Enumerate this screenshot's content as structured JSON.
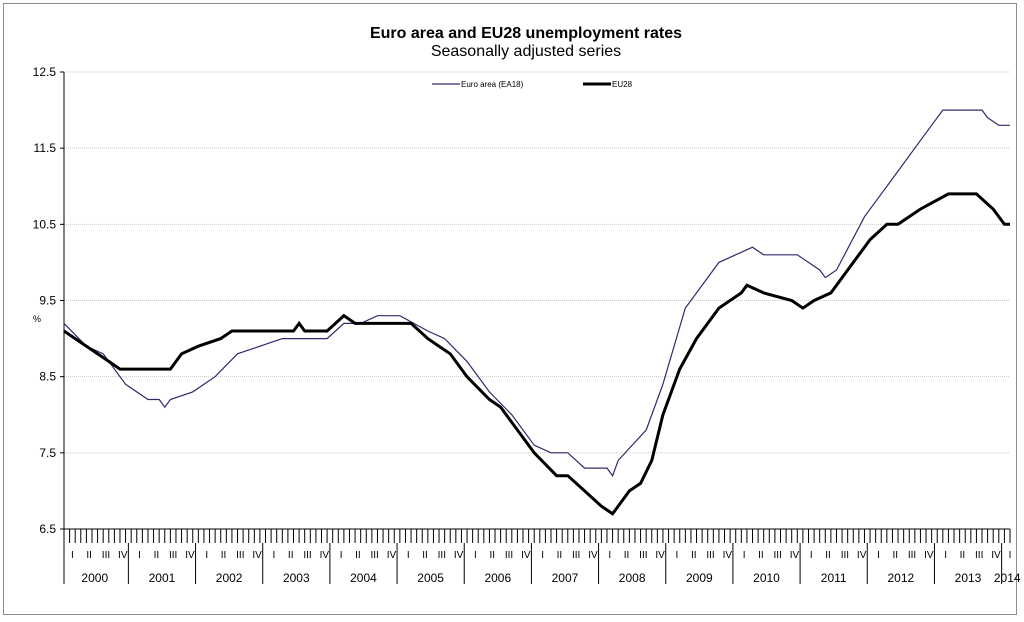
{
  "chart_data": {
    "type": "line",
    "title": "Euro area and EU28 unemployment rates",
    "subtitle": "Seasonally adjusted series",
    "ylabel": "%",
    "ylim": [
      6.5,
      12.5
    ],
    "yticks": [
      6.5,
      7.5,
      8.5,
      9.5,
      10.5,
      11.5,
      12.5
    ],
    "grid": true,
    "legend_position": "top",
    "x_start": "2000-01",
    "x_end": "2014-02",
    "quarter_labels": [
      "I",
      "II",
      "III",
      "IV"
    ],
    "years": [
      "2000",
      "2001",
      "2002",
      "2003",
      "2004",
      "2005",
      "2006",
      "2007",
      "2008",
      "2009",
      "2010",
      "2011",
      "2012",
      "2013",
      "2014"
    ],
    "series": [
      {
        "name": "Euro area (EA18)",
        "color": "#2b2b6e",
        "width": 1.2,
        "points": [
          [
            "2000-01",
            9.2
          ],
          [
            "2000-05",
            8.9
          ],
          [
            "2000-08",
            8.8
          ],
          [
            "2000-12",
            8.4
          ],
          [
            "2001-04",
            8.2
          ],
          [
            "2001-06",
            8.2
          ],
          [
            "2001-07",
            8.1
          ],
          [
            "2001-08",
            8.2
          ],
          [
            "2001-12",
            8.3
          ],
          [
            "2002-04",
            8.5
          ],
          [
            "2002-08",
            8.8
          ],
          [
            "2002-12",
            8.9
          ],
          [
            "2003-04",
            9.0
          ],
          [
            "2003-12",
            9.0
          ],
          [
            "2004-03",
            9.2
          ],
          [
            "2004-06",
            9.2
          ],
          [
            "2004-09",
            9.3
          ],
          [
            "2005-01",
            9.3
          ],
          [
            "2005-06",
            9.1
          ],
          [
            "2005-09",
            9.0
          ],
          [
            "2006-01",
            8.7
          ],
          [
            "2006-05",
            8.3
          ],
          [
            "2006-09",
            8.0
          ],
          [
            "2007-01",
            7.6
          ],
          [
            "2007-04",
            7.5
          ],
          [
            "2007-07",
            7.5
          ],
          [
            "2007-10",
            7.3
          ],
          [
            "2008-02",
            7.3
          ],
          [
            "2008-03",
            7.2
          ],
          [
            "2008-04",
            7.4
          ],
          [
            "2008-09",
            7.8
          ],
          [
            "2008-12",
            8.4
          ],
          [
            "2009-04",
            9.4
          ],
          [
            "2009-08",
            9.8
          ],
          [
            "2009-10",
            10.0
          ],
          [
            "2010-04",
            10.2
          ],
          [
            "2010-06",
            10.1
          ],
          [
            "2010-12",
            10.1
          ],
          [
            "2011-04",
            9.9
          ],
          [
            "2011-05",
            9.8
          ],
          [
            "2011-07",
            9.9
          ],
          [
            "2011-12",
            10.6
          ],
          [
            "2012-04",
            11.0
          ],
          [
            "2012-09",
            11.5
          ],
          [
            "2012-12",
            11.8
          ],
          [
            "2013-02",
            12.0
          ],
          [
            "2013-09",
            12.0
          ],
          [
            "2013-10",
            11.9
          ],
          [
            "2013-12",
            11.8
          ],
          [
            "2014-02",
            11.8
          ]
        ]
      },
      {
        "name": "EU28",
        "color": "#000000",
        "width": 3,
        "points": [
          [
            "2000-01",
            9.1
          ],
          [
            "2000-03",
            9.0
          ],
          [
            "2000-09",
            8.7
          ],
          [
            "2000-11",
            8.6
          ],
          [
            "2001-08",
            8.6
          ],
          [
            "2001-10",
            8.8
          ],
          [
            "2002-01",
            8.9
          ],
          [
            "2002-05",
            9.0
          ],
          [
            "2002-07",
            9.1
          ],
          [
            "2003-06",
            9.1
          ],
          [
            "2003-07",
            9.2
          ],
          [
            "2003-08",
            9.1
          ],
          [
            "2003-12",
            9.1
          ],
          [
            "2004-03",
            9.3
          ],
          [
            "2004-05",
            9.2
          ],
          [
            "2005-03",
            9.2
          ],
          [
            "2005-06",
            9.0
          ],
          [
            "2005-08",
            8.9
          ],
          [
            "2005-10",
            8.8
          ],
          [
            "2006-01",
            8.5
          ],
          [
            "2006-05",
            8.2
          ],
          [
            "2006-07",
            8.1
          ],
          [
            "2006-09",
            7.9
          ],
          [
            "2006-10",
            7.8
          ],
          [
            "2007-01",
            7.5
          ],
          [
            "2007-05",
            7.2
          ],
          [
            "2007-07",
            7.2
          ],
          [
            "2007-10",
            7.0
          ],
          [
            "2008-01",
            6.8
          ],
          [
            "2008-03",
            6.7
          ],
          [
            "2008-05",
            6.9
          ],
          [
            "2008-06",
            7.0
          ],
          [
            "2008-08",
            7.1
          ],
          [
            "2008-10",
            7.4
          ],
          [
            "2008-12",
            8.0
          ],
          [
            "2009-03",
            8.6
          ],
          [
            "2009-06",
            9.0
          ],
          [
            "2009-08",
            9.2
          ],
          [
            "2009-10",
            9.4
          ],
          [
            "2010-02",
            9.6
          ],
          [
            "2010-03",
            9.7
          ],
          [
            "2010-06",
            9.6
          ],
          [
            "2010-11",
            9.5
          ],
          [
            "2011-01",
            9.4
          ],
          [
            "2011-03",
            9.5
          ],
          [
            "2011-06",
            9.6
          ],
          [
            "2011-10",
            10.0
          ],
          [
            "2012-01",
            10.3
          ],
          [
            "2012-04",
            10.5
          ],
          [
            "2012-06",
            10.5
          ],
          [
            "2012-10",
            10.7
          ],
          [
            "2013-03",
            10.9
          ],
          [
            "2013-08",
            10.9
          ],
          [
            "2013-11",
            10.7
          ],
          [
            "2014-01",
            10.5
          ],
          [
            "2014-02",
            10.5
          ]
        ]
      }
    ]
  }
}
